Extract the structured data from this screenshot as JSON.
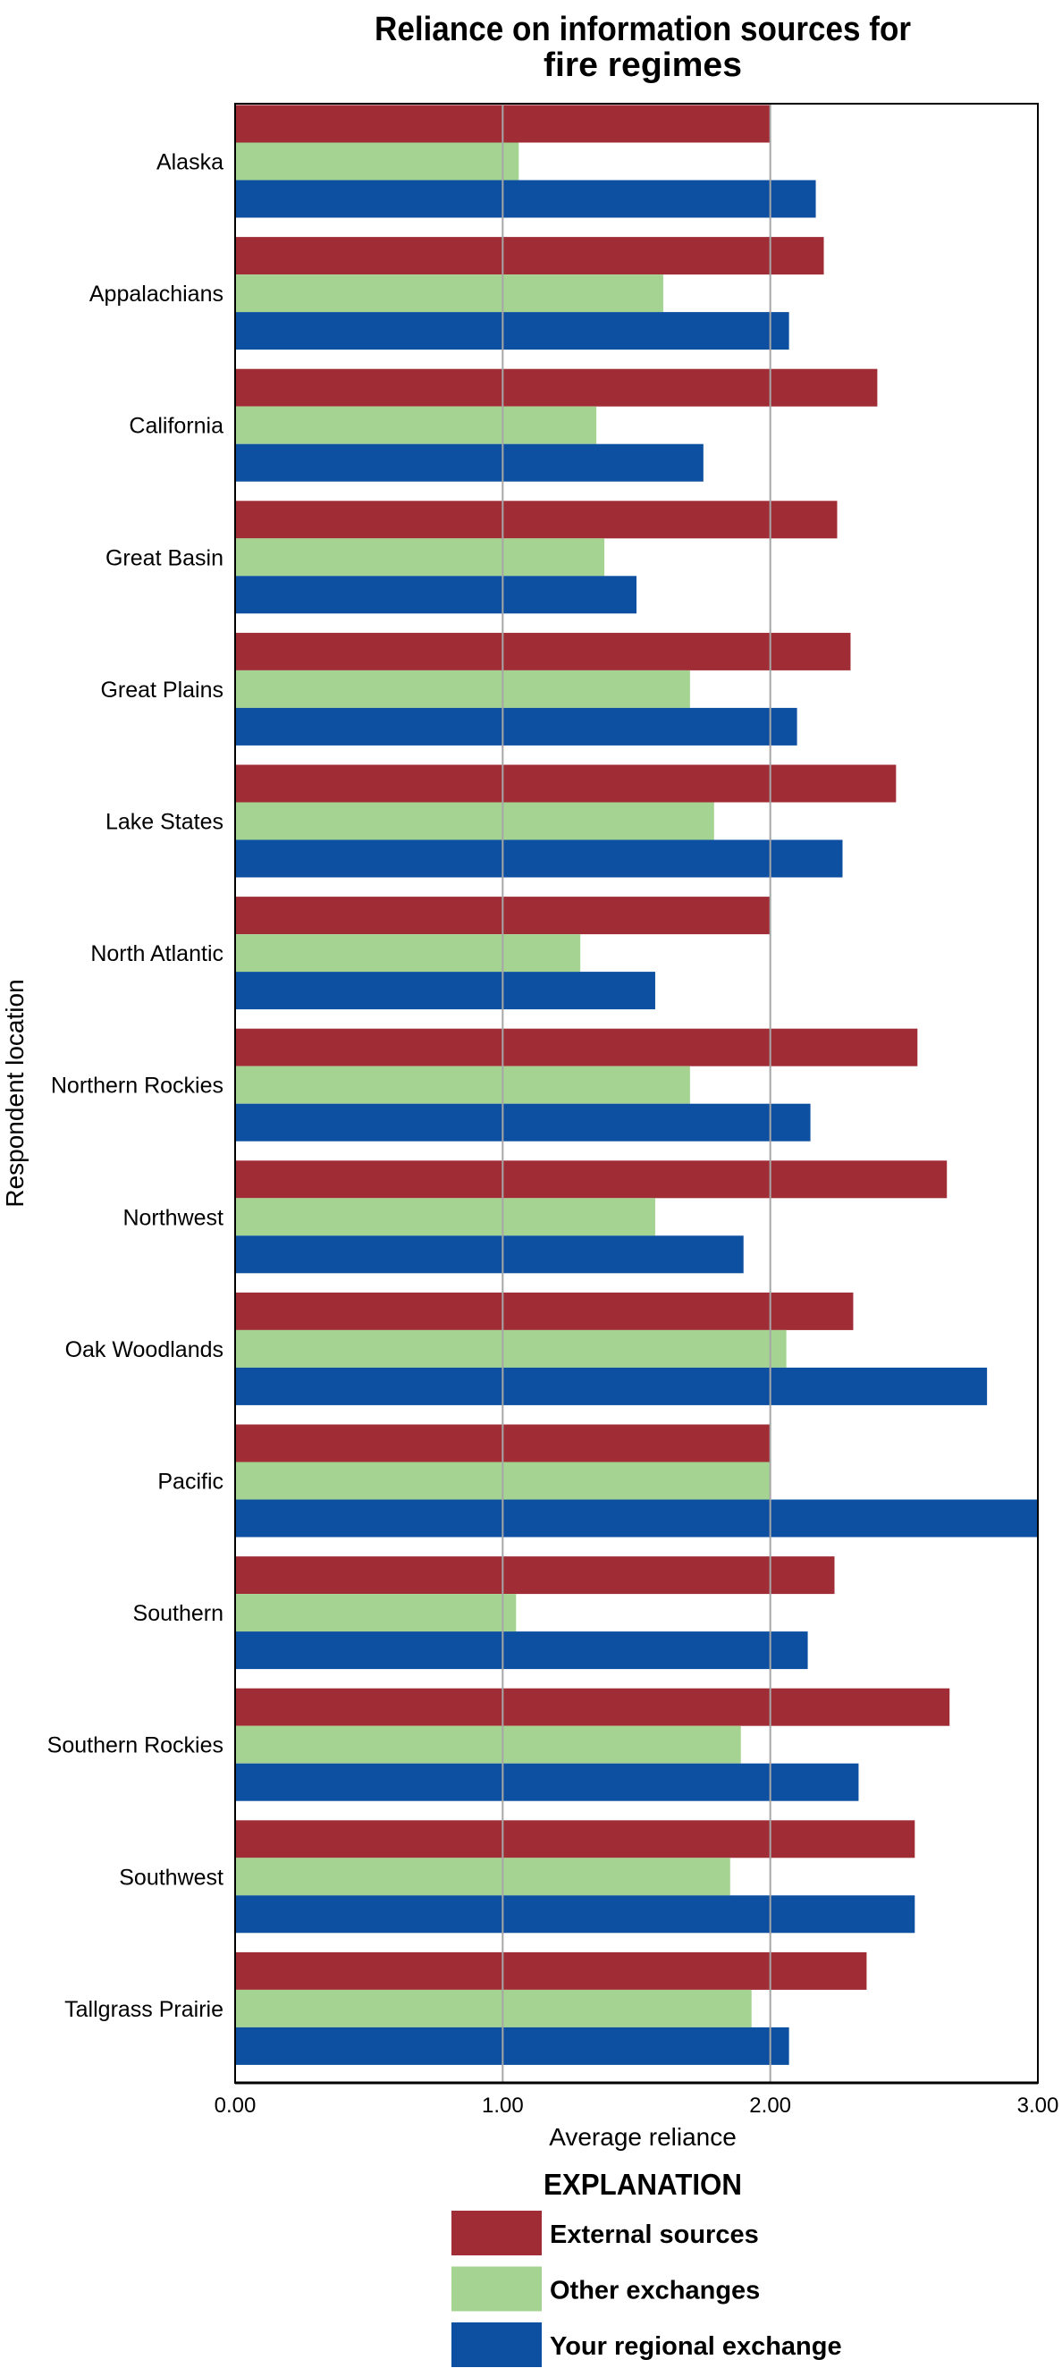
{
  "chart_data": {
    "type": "bar",
    "orientation": "horizontal",
    "title": "Reliance on information sources for fire regimes",
    "title_lines": [
      "Reliance on information sources for",
      "fire regimes"
    ],
    "xlabel": "Average reliance",
    "ylabel": "Respondent location",
    "xlim": [
      0,
      3
    ],
    "xticks": [
      0,
      1,
      2,
      3
    ],
    "xtick_labels": [
      "0.00",
      "1.00",
      "2.00",
      "3.00"
    ],
    "grid": "vertical",
    "categories": [
      "Alaska",
      "Appalachians",
      "California",
      "Great Basin",
      "Great Plains",
      "Lake States",
      "North Atlantic",
      "Northern Rockies",
      "Northwest",
      "Oak Woodlands",
      "Pacific",
      "Southern",
      "Southern Rockies",
      "Southwest",
      "Tallgrass Prairie"
    ],
    "series": [
      {
        "name": "External sources",
        "color": "#A02D35",
        "values": [
          2.0,
          2.2,
          2.4,
          2.25,
          2.3,
          2.47,
          2.0,
          2.55,
          2.66,
          2.31,
          2.0,
          2.24,
          2.67,
          2.54,
          2.36
        ]
      },
      {
        "name": "Other exchanges",
        "color": "#A5D392",
        "values": [
          1.06,
          1.6,
          1.35,
          1.38,
          1.7,
          1.79,
          1.29,
          1.7,
          1.57,
          2.06,
          2.0,
          1.05,
          1.89,
          1.85,
          1.93
        ]
      },
      {
        "name": "Your regional exchange",
        "color": "#0D4FA1",
        "values": [
          2.17,
          2.07,
          1.75,
          1.5,
          2.1,
          2.27,
          1.57,
          2.15,
          1.9,
          2.81,
          3.0,
          2.14,
          2.33,
          2.54,
          2.07
        ]
      }
    ],
    "legend": {
      "title": "EXPLANATION",
      "position": "bottom-center"
    }
  }
}
